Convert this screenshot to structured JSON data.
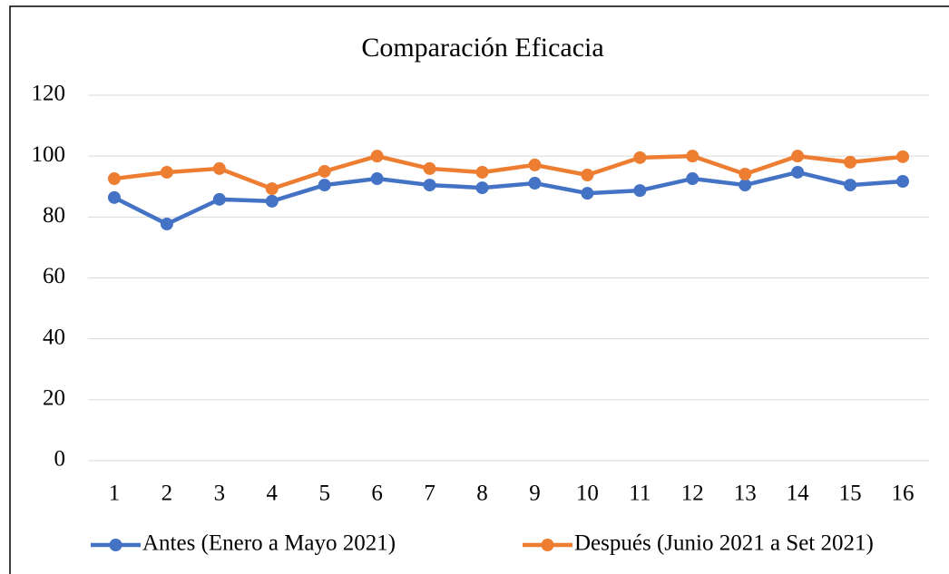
{
  "chart_data": {
    "type": "line",
    "title": "Comparación Eficacia",
    "categories": [
      "1",
      "2",
      "3",
      "4",
      "5",
      "6",
      "7",
      "8",
      "9",
      "10",
      "11",
      "12",
      "13",
      "14",
      "15",
      "16"
    ],
    "series": [
      {
        "name": "Antes (Enero a Mayo 2021)",
        "color": "#4472c4",
        "values": [
          86.4,
          77.7,
          85.8,
          85.2,
          90.5,
          92.6,
          90.5,
          89.6,
          91.1,
          87.8,
          88.7,
          92.6,
          90.5,
          94.7,
          90.5,
          91.7
        ]
      },
      {
        "name": "Después (Junio 2021  a Set 2021)",
        "color": "#ed7d31",
        "values": [
          92.6,
          94.7,
          95.9,
          89.3,
          95,
          100,
          95.9,
          94.7,
          97.1,
          93.8,
          99.5,
          100,
          94.1,
          100,
          98,
          99.8
        ]
      }
    ],
    "ylim": [
      0,
      120
    ],
    "yticks": [
      0,
      20,
      40,
      60,
      80,
      100,
      120
    ],
    "grid": true,
    "legend": "bottom"
  }
}
